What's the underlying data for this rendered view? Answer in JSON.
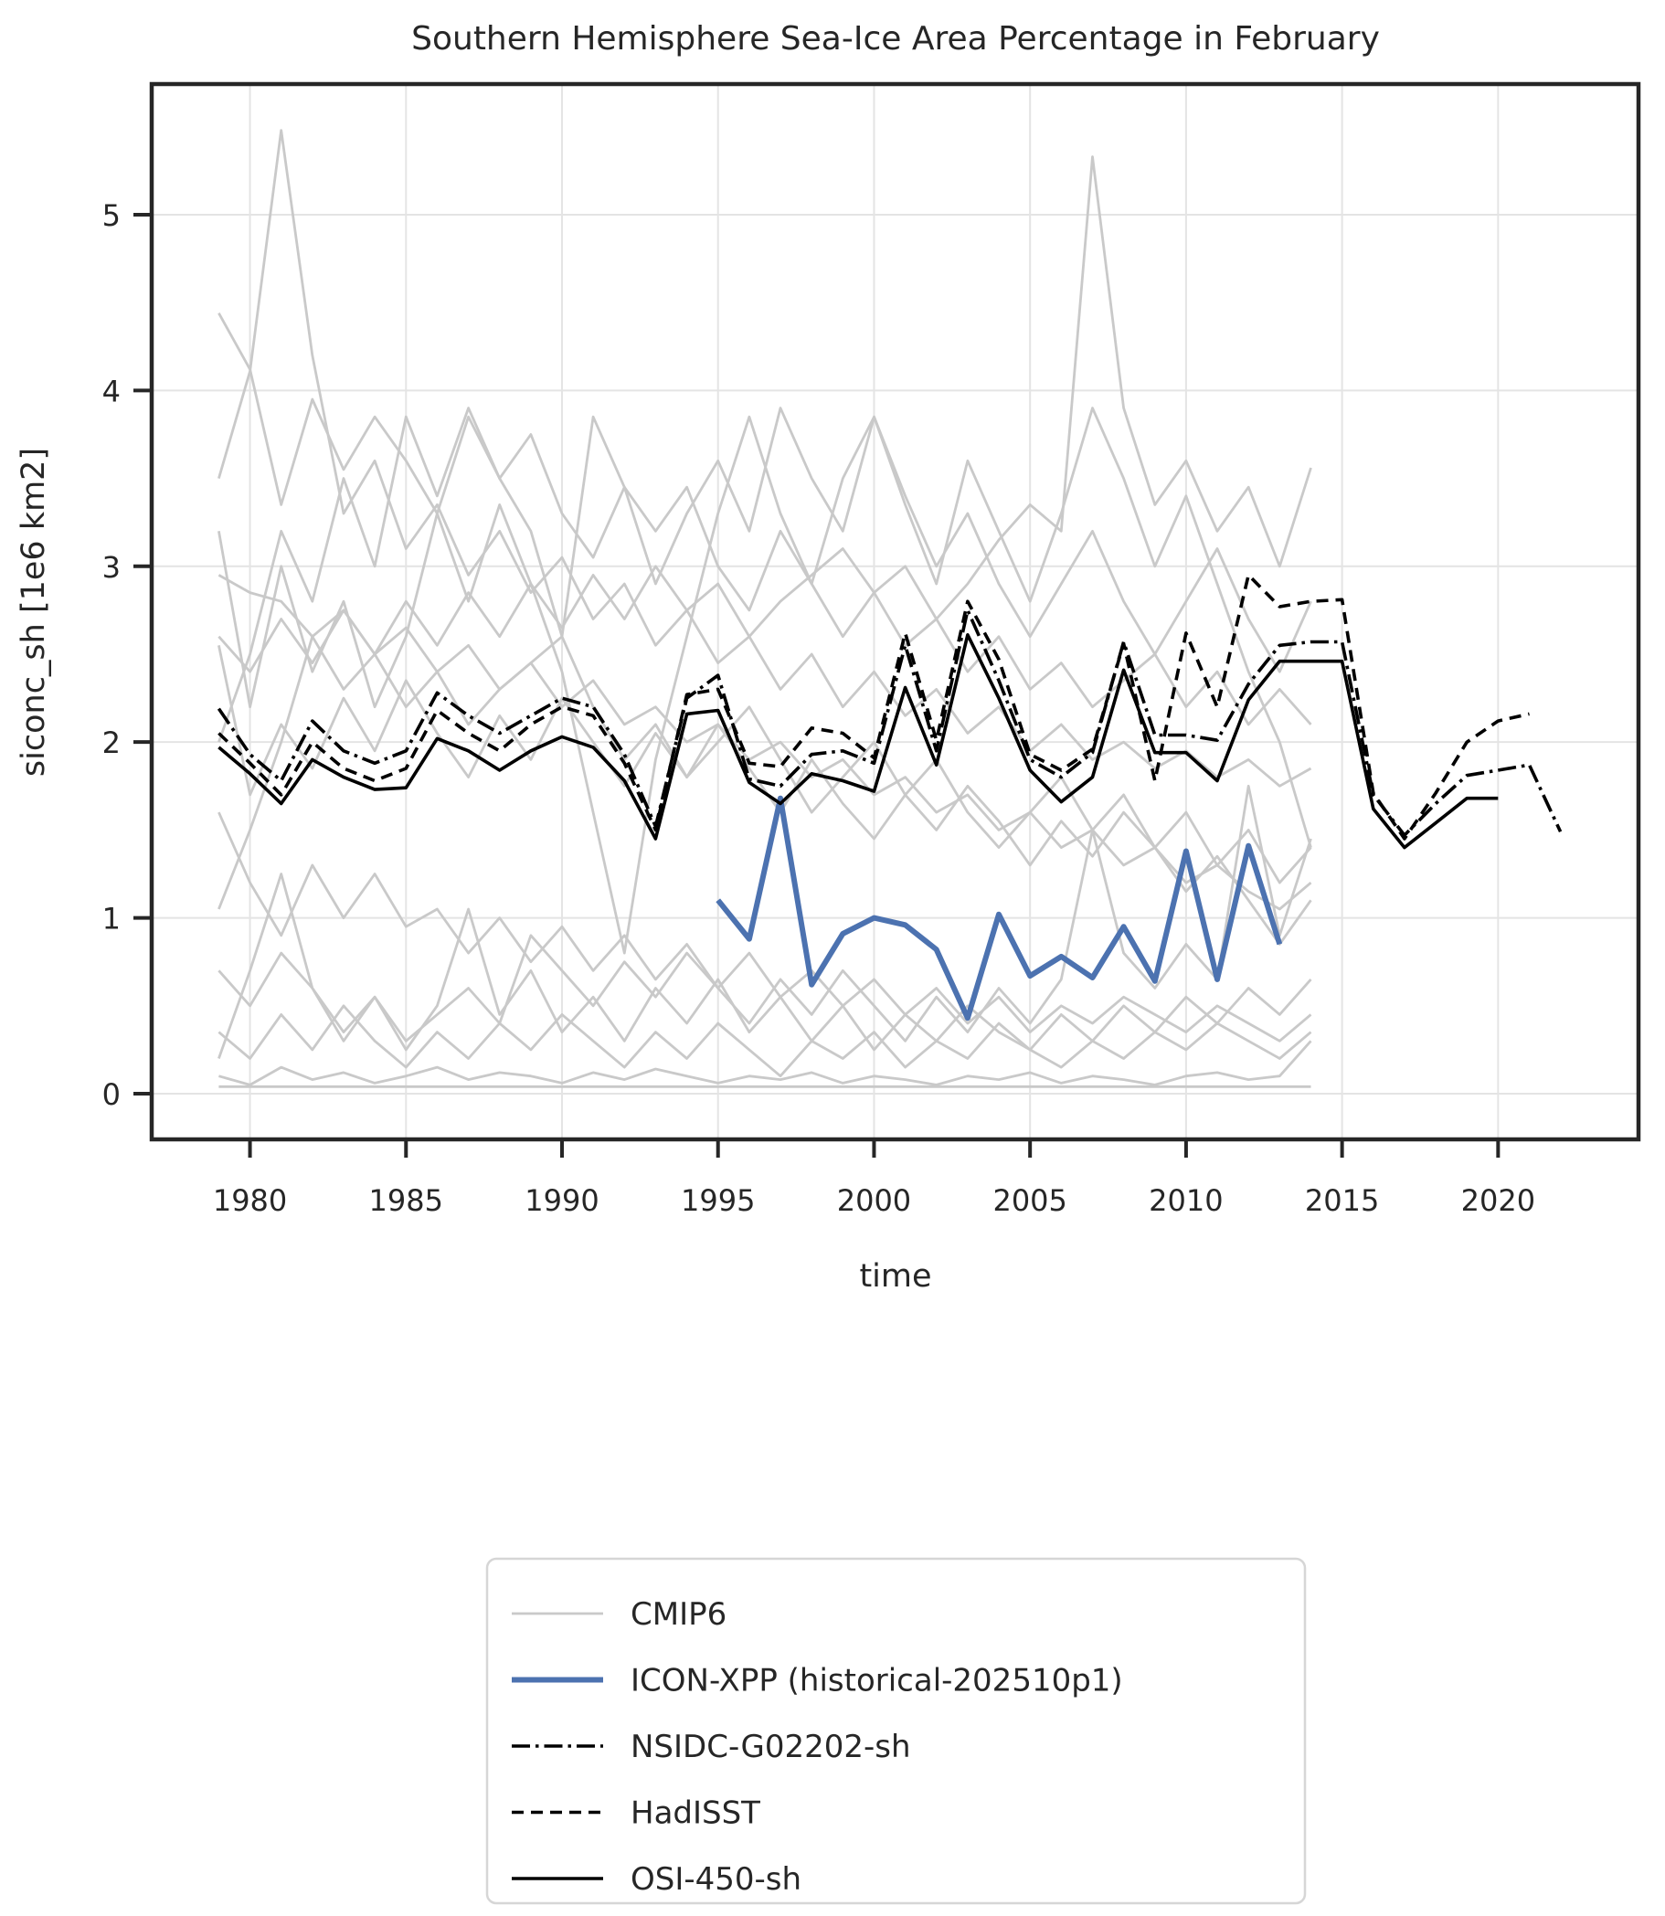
{
  "title": "Southern Hemisphere Sea-Ice Area Percentage in February",
  "colors": {
    "cmip6": "#c9c9c9",
    "icon_xpp": "#4c72b0",
    "observation": "#000000",
    "grid": "#e4e4e4",
    "spine": "#262626",
    "text": "#262626",
    "legend_border": "#d6d6d6",
    "background": "#ffffff"
  },
  "chart_data": {
    "type": "line",
    "title": "Southern Hemisphere Sea-Ice Area Percentage in February",
    "xlabel": "time",
    "ylabel": "siconc_sh [1e6 km2]",
    "xlim": [
      1976.85,
      2024.5
    ],
    "ylim": [
      -0.26,
      5.743
    ],
    "xticks": [
      1980,
      1985,
      1990,
      1995,
      2000,
      2005,
      2010,
      2015,
      2020
    ],
    "yticks": [
      0,
      1,
      2,
      3,
      4,
      5
    ],
    "grid": true,
    "legend_position": "lower center",
    "legend": [
      {
        "label": "CMIP6",
        "style": "cmip6"
      },
      {
        "label": "ICON-XPP (historical-202510p1)",
        "style": "icon"
      },
      {
        "label": "NSIDC-G02202-sh",
        "style": "nsidc"
      },
      {
        "label": "HadISST",
        "style": "hadisst"
      },
      {
        "label": "OSI-450-sh",
        "style": "osi"
      }
    ],
    "styles": {
      "cmip6": {
        "color": "#c9c9c9",
        "width": 2.8,
        "dash": ""
      },
      "icon": {
        "color": "#4c72b0",
        "width": 6,
        "dash": ""
      },
      "nsidc": {
        "color": "#000000",
        "width": 3.6,
        "dash": "20 6 3.5 6"
      },
      "hadisst": {
        "color": "#000000",
        "width": 3.6,
        "dash": "13 8"
      },
      "osi": {
        "color": "#000000",
        "width": 3.6,
        "dash": ""
      }
    },
    "series": [
      {
        "name": "CMIP6",
        "member": 1,
        "style": "cmip6",
        "start_year": 1979,
        "values": [
          4.44,
          4.12,
          3.35,
          3.95,
          3.55,
          3.85,
          3.6,
          3.3,
          3.85,
          3.5,
          3.75,
          3.3,
          3.05,
          3.45,
          3.2,
          3.45,
          3.0,
          2.75,
          3.2,
          2.9,
          2.6,
          2.85,
          2.55,
          2.7,
          2.4,
          2.6,
          2.3,
          2.45,
          2.2,
          2.35,
          2.5,
          2.2,
          2.4,
          2.1,
          2.3,
          2.1
        ]
      },
      {
        "name": "CMIP6",
        "member": 2,
        "style": "cmip6",
        "start_year": 1979,
        "values": [
          3.5,
          4.11,
          5.48,
          4.2,
          3.3,
          3.6,
          3.1,
          3.35,
          2.95,
          3.2,
          2.85,
          3.05,
          2.7,
          2.9,
          2.55,
          2.75,
          2.45,
          2.6,
          2.3,
          2.5,
          2.2,
          2.4,
          2.15,
          2.3,
          2.05,
          2.2,
          1.95,
          2.1,
          1.9,
          2.0,
          1.85,
          1.95,
          1.8,
          1.9,
          1.75,
          1.85
        ]
      },
      {
        "name": "CMIP6",
        "member": 3,
        "style": "cmip6",
        "start_year": 1979,
        "values": [
          2.6,
          2.4,
          2.7,
          2.45,
          2.75,
          2.5,
          2.8,
          2.55,
          2.85,
          2.6,
          2.9,
          2.65,
          2.95,
          2.7,
          3.0,
          2.75,
          2.9,
          2.6,
          2.8,
          2.95,
          3.1,
          2.85,
          3.0,
          2.7,
          2.9,
          3.15,
          3.35,
          3.2,
          5.33,
          3.9,
          3.35,
          3.6,
          3.2,
          3.45,
          3.0,
          3.56
        ]
      },
      {
        "name": "CMIP6",
        "member": 4,
        "style": "cmip6",
        "start_year": 1979,
        "values": [
          2.0,
          2.5,
          3.2,
          2.8,
          3.5,
          3.0,
          3.85,
          3.4,
          3.9,
          3.5,
          3.2,
          2.6,
          3.85,
          3.45,
          2.9,
          3.3,
          3.6,
          3.2,
          3.9,
          3.5,
          3.2,
          3.85,
          3.4,
          3.0,
          3.3,
          2.9,
          2.6,
          2.9,
          3.2,
          2.8,
          2.5,
          2.8,
          3.1,
          2.7,
          2.4,
          2.8
        ]
      },
      {
        "name": "CMIP6",
        "member": 5,
        "style": "cmip6",
        "start_year": 1979,
        "values": [
          1.05,
          1.5,
          2.0,
          2.6,
          2.3,
          2.5,
          2.2,
          2.4,
          2.1,
          2.3,
          2.45,
          2.6,
          2.2,
          1.9,
          2.1,
          1.8,
          2.0,
          2.2,
          1.9,
          1.6,
          1.8,
          2.0,
          1.7,
          1.9,
          1.6,
          1.4,
          1.6,
          1.8,
          1.5,
          1.7,
          1.4,
          1.6,
          1.3,
          1.5,
          1.2,
          1.4
        ]
      },
      {
        "name": "CMIP6",
        "member": 6,
        "style": "cmip6",
        "start_year": 1979,
        "values": [
          2.55,
          1.7,
          2.1,
          1.85,
          2.25,
          1.95,
          2.35,
          2.05,
          1.8,
          2.15,
          1.9,
          2.25,
          2.0,
          1.75,
          2.05,
          1.8,
          2.1,
          1.85,
          1.6,
          1.9,
          1.65,
          1.45,
          1.7,
          1.5,
          1.75,
          1.55,
          1.3,
          1.55,
          1.35,
          1.6,
          1.4,
          1.15,
          1.35,
          1.1,
          0.85,
          1.1
        ]
      },
      {
        "name": "CMIP6",
        "member": 7,
        "style": "cmip6",
        "start_year": 1979,
        "values": [
          0.7,
          0.5,
          0.8,
          0.6,
          0.35,
          0.55,
          0.3,
          0.45,
          0.6,
          0.4,
          0.9,
          0.7,
          0.5,
          0.75,
          0.55,
          0.8,
          0.6,
          0.4,
          0.65,
          0.45,
          0.7,
          0.5,
          0.3,
          0.55,
          0.35,
          0.6,
          0.4,
          0.65,
          1.5,
          0.8,
          0.6,
          0.85,
          0.65,
          1.75,
          0.9,
          1.45
        ]
      },
      {
        "name": "CMIP6",
        "member": 8,
        "style": "cmip6",
        "start_year": 1979,
        "values": [
          0.2,
          0.7,
          1.25,
          0.6,
          0.3,
          0.55,
          0.25,
          0.5,
          1.05,
          0.45,
          0.7,
          0.35,
          0.55,
          0.3,
          0.6,
          0.4,
          0.65,
          0.35,
          0.55,
          0.3,
          0.5,
          0.25,
          0.45,
          0.3,
          0.5,
          0.35,
          0.25,
          0.45,
          0.3,
          0.5,
          0.35,
          0.55,
          0.4,
          0.6,
          0.45,
          0.65
        ]
      },
      {
        "name": "CMIP6",
        "member": 9,
        "style": "cmip6",
        "start_year": 1979,
        "values": [
          0.35,
          0.2,
          0.45,
          0.25,
          0.5,
          0.3,
          0.15,
          0.35,
          0.2,
          0.4,
          0.25,
          0.45,
          0.3,
          0.15,
          0.35,
          0.2,
          0.4,
          0.25,
          0.1,
          0.3,
          0.2,
          0.35,
          0.15,
          0.3,
          0.2,
          0.4,
          0.25,
          0.15,
          0.3,
          0.2,
          0.35,
          0.25,
          0.4,
          0.3,
          0.2,
          0.35
        ]
      },
      {
        "name": "CMIP6",
        "member": 10,
        "style": "cmip6",
        "start_year": 1979,
        "values": [
          0.1,
          0.05,
          0.15,
          0.08,
          0.12,
          0.06,
          0.1,
          0.15,
          0.08,
          0.12,
          0.1,
          0.06,
          0.12,
          0.08,
          0.14,
          0.1,
          0.06,
          0.1,
          0.08,
          0.12,
          0.06,
          0.1,
          0.08,
          0.05,
          0.1,
          0.08,
          0.12,
          0.06,
          0.1,
          0.08,
          0.05,
          0.1,
          0.12,
          0.08,
          0.1,
          0.3
        ]
      },
      {
        "name": "CMIP6",
        "member": 11,
        "style": "cmip6",
        "start_year": 1979,
        "values": [
          0.04,
          0.04,
          0.04,
          0.04,
          0.04,
          0.04,
          0.04,
          0.04,
          0.04,
          0.04,
          0.04,
          0.04,
          0.04,
          0.04,
          0.04,
          0.04,
          0.04,
          0.04,
          0.04,
          0.04,
          0.04,
          0.04,
          0.04,
          0.04,
          0.04,
          0.04,
          0.04,
          0.04,
          0.04,
          0.04,
          0.04,
          0.04,
          0.04,
          0.04,
          0.04,
          0.04
        ]
      },
      {
        "name": "CMIP6",
        "member": 12,
        "style": "cmip6",
        "start_year": 1979,
        "values": [
          1.6,
          1.2,
          0.9,
          1.3,
          1.0,
          1.25,
          0.95,
          1.05,
          0.8,
          1.0,
          0.75,
          0.95,
          0.7,
          0.9,
          0.65,
          0.85,
          0.6,
          0.8,
          0.55,
          0.7,
          0.5,
          0.65,
          0.45,
          0.6,
          0.4,
          0.55,
          0.35,
          0.5,
          0.4,
          0.55,
          0.45,
          0.35,
          0.5,
          0.4,
          0.3,
          0.45
        ]
      },
      {
        "name": "CMIP6",
        "member": 13,
        "style": "cmip6",
        "start_year": 1979,
        "values": [
          2.95,
          2.85,
          2.8,
          2.6,
          2.75,
          2.5,
          2.65,
          2.4,
          2.55,
          2.3,
          2.45,
          2.2,
          2.35,
          2.1,
          2.2,
          2.0,
          2.1,
          1.9,
          2.0,
          1.8,
          1.9,
          1.7,
          1.8,
          1.6,
          1.7,
          1.5,
          1.6,
          1.4,
          1.5,
          1.3,
          1.4,
          1.2,
          1.3,
          1.15,
          1.05,
          1.2
        ]
      },
      {
        "name": "CMIP6",
        "member": 14,
        "style": "cmip6",
        "start_year": 1979,
        "values": [
          3.2,
          2.2,
          3.0,
          2.4,
          2.8,
          2.2,
          2.6,
          3.3,
          2.8,
          3.35,
          2.9,
          2.4,
          1.6,
          0.8,
          1.9,
          2.6,
          3.3,
          3.85,
          3.3,
          2.9,
          3.5,
          3.85,
          3.35,
          2.9,
          3.6,
          3.2,
          2.8,
          3.3,
          3.9,
          3.5,
          3.0,
          3.4,
          2.9,
          2.4,
          2.0,
          1.4
        ]
      },
      {
        "name": "ICON-XPP (historical-202510p1)",
        "style": "icon",
        "start_year": 1995,
        "values": [
          1.1,
          0.88,
          1.68,
          0.62,
          0.91,
          1.0,
          0.96,
          0.82,
          0.43,
          1.02,
          0.67,
          0.78,
          0.66,
          0.95,
          0.64,
          1.38,
          0.65,
          1.41,
          0.85
        ]
      },
      {
        "name": "NSIDC-G02202-sh",
        "style": "nsidc",
        "start_year": 1979,
        "values": [
          2.19,
          1.93,
          1.78,
          2.12,
          1.95,
          1.88,
          1.95,
          2.28,
          2.15,
          2.05,
          2.15,
          2.25,
          2.2,
          1.93,
          1.52,
          2.25,
          2.38,
          1.79,
          1.75,
          1.93,
          1.95,
          1.88,
          2.55,
          1.95,
          2.75,
          2.35,
          1.9,
          1.8,
          1.94,
          2.57,
          2.04,
          2.04,
          2.01,
          2.33,
          2.55,
          2.57,
          2.57,
          1.7,
          1.47,
          1.65,
          1.81,
          1.84,
          1.87,
          1.49
        ]
      },
      {
        "name": "HadISST",
        "style": "hadisst",
        "start_year": 1979,
        "values": [
          2.05,
          1.88,
          1.7,
          2.0,
          1.85,
          1.78,
          1.85,
          2.18,
          2.05,
          1.95,
          2.1,
          2.2,
          2.15,
          1.88,
          1.5,
          2.27,
          2.3,
          1.88,
          1.86,
          2.08,
          2.05,
          1.91,
          2.62,
          2.01,
          2.8,
          2.47,
          1.93,
          1.84,
          1.96,
          2.56,
          1.78,
          2.62,
          2.2,
          2.95,
          2.77,
          2.8,
          2.81,
          1.71,
          1.45,
          1.71,
          2.0,
          2.12,
          2.16
        ]
      },
      {
        "name": "OSI-450-sh",
        "style": "osi",
        "start_year": 1979,
        "values": [
          1.97,
          1.82,
          1.65,
          1.9,
          1.8,
          1.73,
          1.74,
          2.02,
          1.95,
          1.84,
          1.95,
          2.03,
          1.97,
          1.78,
          1.45,
          2.16,
          2.18,
          1.77,
          1.65,
          1.82,
          1.78,
          1.72,
          2.31,
          1.87,
          2.61,
          2.25,
          1.84,
          1.66,
          1.8,
          2.41,
          1.94,
          1.94,
          1.78,
          2.24,
          2.46,
          2.46,
          2.46,
          1.62,
          1.4,
          1.54,
          1.68,
          1.68
        ]
      }
    ]
  }
}
